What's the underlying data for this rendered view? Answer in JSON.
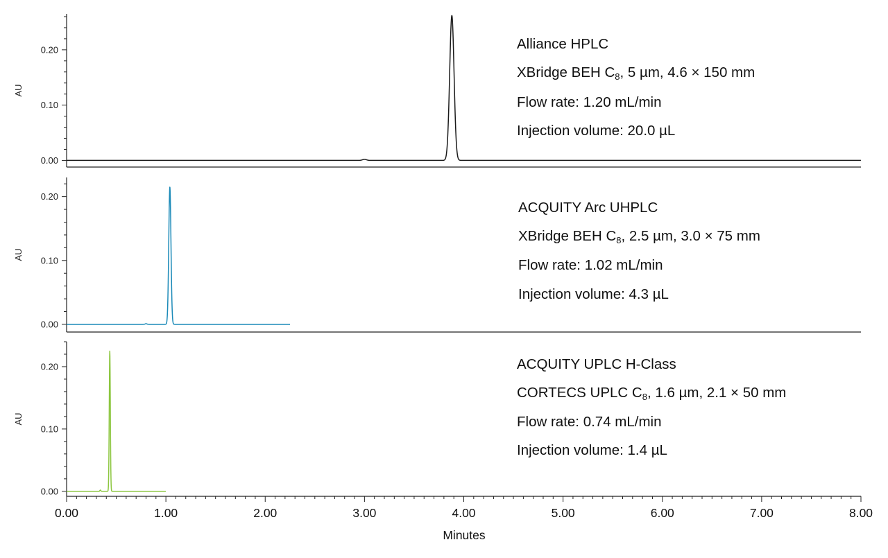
{
  "chart_data": {
    "type": "line",
    "xlabel": "Minutes",
    "x_ticks": [
      "0.00",
      "1.00",
      "2.00",
      "3.00",
      "4.00",
      "5.00",
      "6.00",
      "7.00",
      "8.00"
    ],
    "xlim": [
      0,
      8
    ],
    "ylabel": "AU",
    "y_ticks": [
      "0.00",
      "0.10",
      "0.20"
    ],
    "panels": [
      {
        "ylabel": "AU",
        "ylim": [
          -0.012,
          0.265
        ],
        "color": "#1a1a1a",
        "annotation": {
          "line1": "Alliance HPLC",
          "line2_pre": "XBridge BEH C",
          "line2_sub": "8",
          "line2_post": ", 5 µm, 4.6 × 150 mm",
          "line3": "Flow rate: 1.20 mL/min",
          "line4": "Injection volume: 20.0 µL"
        },
        "series": [
          {
            "x_end": 8.0,
            "peaks": [
              {
                "x": 3.0,
                "y": 0.002,
                "w": 0.02
              },
              {
                "x": 3.88,
                "y": 0.262,
                "w": 0.022
              }
            ]
          }
        ]
      },
      {
        "ylabel": "AU",
        "ylim": [
          -0.012,
          0.23
        ],
        "color": "#1b8ab8",
        "annotation": {
          "line1": "ACQUITY Arc UHPLC",
          "line2_pre": "XBridge BEH C",
          "line2_sub": "8",
          "line2_post": ", 2.5 µm, 3.0 × 75 mm",
          "line3": "Flow rate: 1.02 mL/min",
          "line4": "Injection volume: 4.3 µL"
        },
        "series": [
          {
            "x_end": 2.25,
            "peaks": [
              {
                "x": 0.8,
                "y": 0.001,
                "w": 0.01
              },
              {
                "x": 1.04,
                "y": 0.215,
                "w": 0.011
              }
            ]
          }
        ]
      },
      {
        "ylabel": "AU",
        "ylim": [
          -0.008,
          0.24
        ],
        "color": "#8cc63f",
        "annotation": {
          "line1": "ACQUITY UPLC H-Class",
          "line2_pre": "CORTECS UPLC C",
          "line2_sub": "8",
          "line2_post": ", 1.6 µm, 2.1 × 50 mm",
          "line3": "Flow rate:  0.74 mL/min",
          "line4": "Injection volume: 1.4 µL"
        },
        "series": [
          {
            "x_end": 1.0,
            "peaks": [
              {
                "x": 0.34,
                "y": 0.002,
                "w": 0.005
              },
              {
                "x": 0.435,
                "y": 0.225,
                "w": 0.0055
              }
            ]
          }
        ]
      }
    ]
  }
}
